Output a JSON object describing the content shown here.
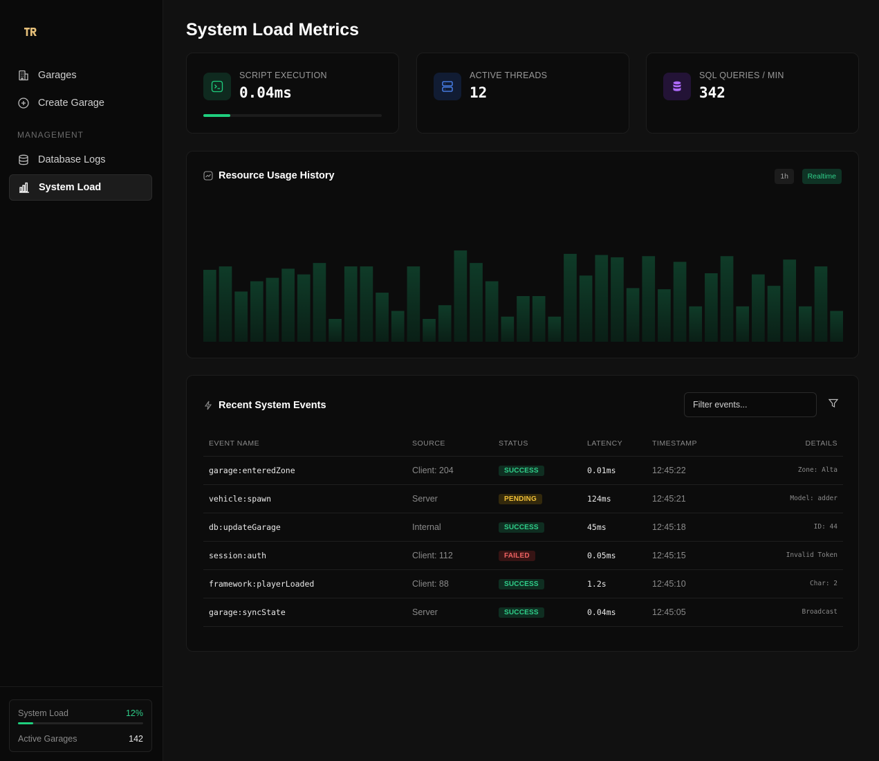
{
  "sidebar": {
    "logo_text": "TR",
    "nav": [
      {
        "label": "Garages",
        "icon": "building-icon"
      },
      {
        "label": "Create Garage",
        "icon": "plus-circle-icon"
      }
    ],
    "section_label": "MANAGEMENT",
    "management": [
      {
        "label": "Database Logs",
        "icon": "database-icon"
      },
      {
        "label": "System Load",
        "icon": "bar-chart-icon",
        "active": true
      }
    ],
    "footer": {
      "system_load_label": "System Load",
      "system_load_value": "12%",
      "system_load_fraction": 0.12,
      "active_garages_label": "Active Garages",
      "active_garages_value": "142"
    }
  },
  "page": {
    "title": "System Load Metrics"
  },
  "stats": [
    {
      "label": "SCRIPT EXECUTION",
      "value": "0.04ms",
      "icon": "terminal-icon",
      "accent": "#1fcf7e",
      "progress": 0.15
    },
    {
      "label": "ACTIVE THREADS",
      "value": "12",
      "icon": "server-icon",
      "accent": "#4f8cff"
    },
    {
      "label": "SQL QUERIES / MIN",
      "value": "342",
      "icon": "database-icon",
      "accent": "#b06bff"
    }
  ],
  "chart": {
    "title": "Resource Usage History",
    "chip_1h": "1h",
    "chip_realtime": "Realtime"
  },
  "chart_data": {
    "type": "bar",
    "values": [
      63,
      66,
      44,
      53,
      56,
      64,
      59,
      69,
      20,
      66,
      66,
      43,
      27,
      66,
      20,
      32,
      80,
      69,
      53,
      22,
      40,
      40,
      22,
      77,
      58,
      76,
      74,
      47,
      75,
      46,
      70,
      31,
      60,
      75,
      31,
      59,
      49,
      72,
      31,
      66,
      27
    ],
    "color": "#0f3b28"
  },
  "events": {
    "title": "Recent System Events",
    "filter_placeholder": "Filter events...",
    "columns": [
      "EVENT NAME",
      "SOURCE",
      "STATUS",
      "LATENCY",
      "TIMESTAMP",
      "DETAILS"
    ],
    "rows": [
      {
        "name": "garage:enteredZone",
        "source": "Client: 204",
        "status": "SUCCESS",
        "latency": "0.01ms",
        "timestamp": "12:45:22",
        "details": "Zone: Alta"
      },
      {
        "name": "vehicle:spawn",
        "source": "Server",
        "status": "PENDING",
        "latency": "124ms",
        "timestamp": "12:45:21",
        "details": "Model: adder"
      },
      {
        "name": "db:updateGarage",
        "source": "Internal",
        "status": "SUCCESS",
        "latency": "45ms",
        "timestamp": "12:45:18",
        "details": "ID: 44"
      },
      {
        "name": "session:auth",
        "source": "Client: 112",
        "status": "FAILED",
        "latency": "0.05ms",
        "timestamp": "12:45:15",
        "details": "Invalid Token"
      },
      {
        "name": "framework:playerLoaded",
        "source": "Client: 88",
        "status": "SUCCESS",
        "latency": "1.2s",
        "timestamp": "12:45:10",
        "details": "Char: 2"
      },
      {
        "name": "garage:syncState",
        "source": "Server",
        "status": "SUCCESS",
        "latency": "0.04ms",
        "timestamp": "12:45:05",
        "details": "Broadcast"
      }
    ]
  }
}
